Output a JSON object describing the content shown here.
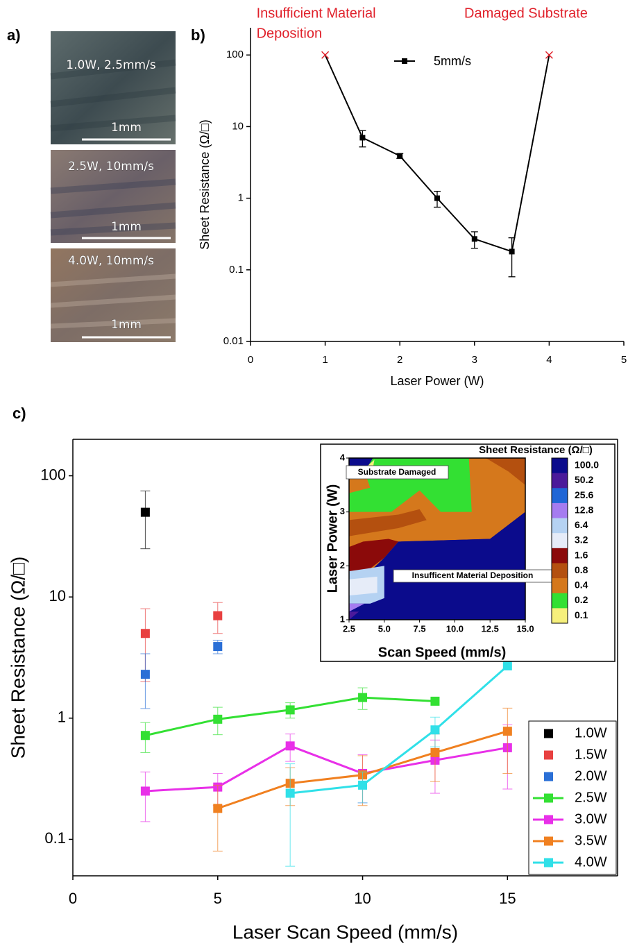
{
  "panel_labels": [
    "a)",
    "b)",
    "c)"
  ],
  "micrographs": [
    {
      "label": "1.0W, 2.5mm/s",
      "scale_bar": "1mm"
    },
    {
      "label": "2.5W, 10mm/s",
      "scale_bar": "1mm"
    },
    {
      "label": "4.0W, 10mm/s",
      "scale_bar": "1mm"
    }
  ],
  "chart_data": [
    {
      "type": "line",
      "annotations": [
        [
          "Insufficient Material",
          "Deposition"
        ],
        [
          "Damaged Substrate"
        ]
      ],
      "annotation_color": "#e0202a",
      "x_label": "Laser Power (W)",
      "y_label": "Sheet Resistance (Ω/□)",
      "x": [
        1,
        1.5,
        2,
        2.5,
        3,
        3.5,
        4
      ],
      "series": [
        {
          "name": "5mm/s",
          "color": "#000000",
          "values": [
            100,
            7,
            3.9,
            1,
            0.27,
            0.18,
            100
          ],
          "errors": [
            null,
            1.8,
            0.3,
            0.25,
            0.07,
            0.1,
            null
          ],
          "markers": [
            "x",
            "square",
            "square",
            "square",
            "square",
            "square",
            "x"
          ],
          "line": true
        }
      ],
      "xlim": [
        0,
        5
      ],
      "xticks": [
        0,
        1,
        2,
        3,
        4,
        5
      ],
      "ylim": [
        0.01,
        240
      ],
      "yticks": [
        0.01,
        0.1,
        1,
        10,
        100
      ],
      "log_y": true,
      "box": false,
      "legend": "top-center"
    },
    {
      "type": "line",
      "x_label": "Laser Scan Speed (mm/s)",
      "y_label": "Sheet Resistance (Ω/□)",
      "x": [
        2.5,
        5,
        7.5,
        10,
        12.5,
        15
      ],
      "series": [
        {
          "name": "1.0W",
          "color": "#000000",
          "line": false,
          "values": [
            50,
            null,
            null,
            null,
            null,
            null
          ],
          "errors": [
            25,
            null,
            null,
            null,
            null,
            null
          ]
        },
        {
          "name": "1.5W",
          "color": "#e84040",
          "line": false,
          "values": [
            5,
            7,
            null,
            null,
            null,
            null
          ],
          "errors": [
            3,
            2,
            null,
            null,
            null,
            null
          ]
        },
        {
          "name": "2.0W",
          "color": "#2a6fd6",
          "line": false,
          "values": [
            2.3,
            3.9,
            null,
            null,
            null,
            null
          ],
          "errors": [
            1.1,
            0.5,
            null,
            null,
            null,
            null
          ]
        },
        {
          "name": "2.5W",
          "color": "#33e033",
          "line": true,
          "values": [
            0.72,
            0.98,
            1.17,
            1.48,
            1.38,
            null
          ],
          "errors": [
            0.2,
            0.25,
            0.17,
            0.3,
            null,
            null
          ]
        },
        {
          "name": "3.0W",
          "color": "#e830e8",
          "line": true,
          "values": [
            0.25,
            0.27,
            0.59,
            0.35,
            0.45,
            0.57
          ],
          "errors": [
            0.11,
            0.08,
            0.15,
            0.15,
            0.21,
            0.31
          ]
        },
        {
          "name": "3.5W",
          "color": "#f08020",
          "line": true,
          "values": [
            null,
            0.18,
            0.29,
            0.34,
            0.52,
            0.78
          ],
          "errors": [
            null,
            0.1,
            0.1,
            0.15,
            0.22,
            0.43
          ]
        },
        {
          "name": "4.0W",
          "color": "#30e0e8",
          "line": true,
          "values": [
            null,
            null,
            0.24,
            0.28,
            0.8,
            2.7
          ],
          "errors": [
            null,
            null,
            0.18,
            0.08,
            0.22,
            null
          ]
        }
      ],
      "xlim": [
        0,
        18.8
      ],
      "xticks": [
        0,
        5,
        10,
        15
      ],
      "ylim": [
        0.05,
        200
      ],
      "yticks": [
        0.1,
        1,
        10,
        100
      ],
      "log_y": true,
      "box": true,
      "legend": "bottom-right"
    },
    {
      "type": "contour",
      "title": "Sheet Resistance (Ω/□)",
      "x_label": "Scan Speed (mm/s)",
      "y_label": "Laser Power (W)",
      "xlim": [
        2.5,
        15
      ],
      "xticks": [
        2.5,
        {
          "value": 5,
          "label": "5.0"
        },
        7.5,
        {
          "value": 10,
          "label": "10.0"
        },
        12.5,
        {
          "value": 15,
          "label": "15.0"
        }
      ],
      "ylim": [
        1,
        4
      ],
      "yticks": [
        1,
        2,
        3,
        4
      ],
      "annotations": [
        "Substrate Damaged",
        "Insufficent Material Deposition"
      ],
      "colorbar": {
        "ticks": [
          {
            "value": 100,
            "label": "100.0"
          },
          50.2,
          25.6,
          12.8,
          6.4,
          3.2,
          1.6,
          0.8,
          0.4,
          0.2,
          0.1
        ],
        "colors": [
          "#0b0b8c",
          "#4b1a9a",
          "#1f66d6",
          "#a57cf0",
          "#b5d2f2",
          "#e6ecf8",
          "#8b0a0a",
          "#b4500f",
          "#d5781c",
          "#33e033",
          "#f6f07c"
        ]
      }
    }
  ]
}
